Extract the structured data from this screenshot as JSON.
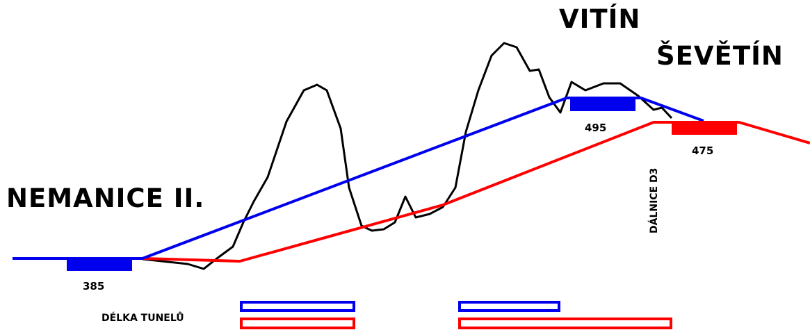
{
  "labels": {
    "nemanice": "NEMANICE II.",
    "vitin": "VITÍN",
    "sevetin": "ŠEVĚTÍN",
    "dalnice": "DÁLNICE D3",
    "tunnel_length": "DÉLKA TUNELŮ"
  },
  "elevations": {
    "start": "385",
    "blue_portal": "495",
    "red_portal": "475"
  },
  "colors": {
    "blue": "#0000ee",
    "red": "#ff0000",
    "terrain": "#000000"
  }
}
